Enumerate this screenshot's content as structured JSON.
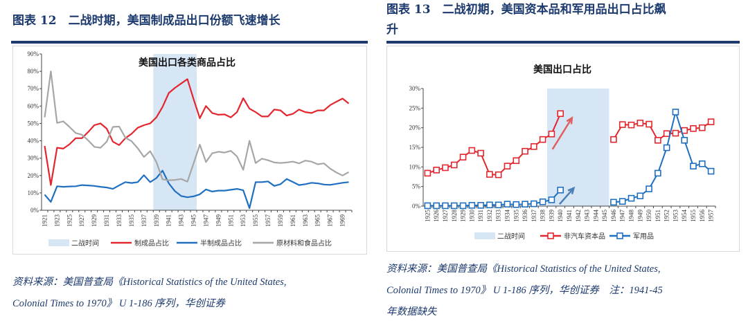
{
  "figures": [
    {
      "title": "图表 12　二战时期，美国制成品出口份额飞速增长",
      "source_line1": "资料来源：美国普查局《Historical Statistics of the United States,",
      "source_line2": "Colonial Times to 1970》 U 1-186 序列，华创证券"
    },
    {
      "title_line1": "图表 13　二战初期，美国资本品和军用品出口占比飙",
      "title_line2": "升",
      "source_line1": "资料来源：美国普查局《Historical Statistics of the United States,",
      "source_line2": "Colonial Times to 1970》 U 1-186 序列，华创证券　注：1941-45",
      "source_line3": "年数据缺失"
    }
  ],
  "chart_data": [
    {
      "type": "line",
      "title": "美国出口各类商品占比",
      "x": [
        1921,
        1922,
        1923,
        1924,
        1925,
        1926,
        1927,
        1928,
        1929,
        1930,
        1931,
        1932,
        1933,
        1934,
        1935,
        1936,
        1937,
        1938,
        1939,
        1940,
        1941,
        1942,
        1943,
        1944,
        1945,
        1946,
        1947,
        1948,
        1949,
        1950,
        1951,
        1952,
        1953,
        1954,
        1955,
        1956,
        1957,
        1958,
        1959,
        1960,
        1961,
        1962,
        1963,
        1964,
        1965,
        1966,
        1967,
        1968,
        1969,
        1970
      ],
      "xticks": [
        1921,
        1923,
        1925,
        1927,
        1929,
        1931,
        1933,
        1935,
        1937,
        1939,
        1941,
        1943,
        1945,
        1947,
        1949,
        1951,
        1953,
        1955,
        1957,
        1959,
        1961,
        1963,
        1965,
        1967,
        1969
      ],
      "ylim": [
        0,
        90
      ],
      "yticks": [
        "0%",
        "10%",
        "20%",
        "30%",
        "40%",
        "50%",
        "60%",
        "70%",
        "80%",
        "90%"
      ],
      "shaded_band": {
        "name": "二战时间",
        "from": 1938.5,
        "to": 1945.5,
        "color": "#d6e6f5"
      },
      "legend_position": "bottom",
      "series": [
        {
          "name": "制成品占比",
          "color": "#e3262e",
          "values": [
            37,
            14.5,
            36,
            35.5,
            38,
            41.5,
            41.5,
            45,
            49,
            50,
            47,
            39.5,
            37.5,
            41.5,
            44,
            47.5,
            49,
            50,
            53.5,
            59.5,
            67.5,
            70.5,
            73,
            75.5,
            64,
            53,
            60,
            56,
            55,
            55.2,
            53.5,
            56.5,
            64.5,
            58.5,
            56.5,
            54,
            54,
            58,
            57.5,
            54.5,
            55.5,
            58,
            56.5,
            56,
            57.5,
            57.5,
            60.5,
            62.5,
            64.3,
            61.5
          ]
        },
        {
          "name": "半制成品占比",
          "color": "#1f6fc0",
          "values": [
            9,
            4.8,
            13.8,
            13.5,
            13.7,
            13.8,
            14.5,
            14.3,
            14,
            13.5,
            13.1,
            12.3,
            14.3,
            16.2,
            15.7,
            16.2,
            20.2,
            16.2,
            18.5,
            22.8,
            15.5,
            11,
            8.2,
            7.5,
            8,
            9.2,
            12,
            10.8,
            11.3,
            11.3,
            11.8,
            12.3,
            11.5,
            1.2,
            16.2,
            16.2,
            16.6,
            14,
            15,
            18,
            16.3,
            14.5,
            15,
            15.8,
            15.5,
            14.8,
            14.6,
            15.2,
            15.8,
            16.2
          ]
        },
        {
          "name": "原材料和食品占比",
          "color": "#a6a6a6",
          "values": [
            53.5,
            80,
            50.3,
            51.2,
            48,
            44.5,
            43.5,
            40.3,
            36.5,
            36,
            39.5,
            48,
            48.2,
            41.8,
            39.8,
            35.7,
            30.7,
            34,
            27.8,
            17.8,
            17.3,
            17.5,
            18,
            16.5,
            27,
            37.8,
            27.8,
            32.8,
            33.7,
            33.2,
            34.2,
            31,
            23.3,
            40,
            27.2,
            29.7,
            28.8,
            27.5,
            27.2,
            27.5,
            28,
            27,
            28.6,
            28,
            26.5,
            27,
            24,
            21.8,
            20,
            22
          ]
        }
      ]
    },
    {
      "type": "line",
      "title": "美国出口占比",
      "x": [
        1925,
        1926,
        1927,
        1928,
        1929,
        1930,
        1931,
        1932,
        1933,
        1934,
        1935,
        1936,
        1937,
        1938,
        1939,
        1940,
        1941,
        1942,
        1943,
        1944,
        1945,
        1946,
        1947,
        1948,
        1949,
        1950,
        1951,
        1952,
        1953,
        1954,
        1955,
        1956,
        1957
      ],
      "ylim": [
        0,
        30
      ],
      "yticks": [
        "0%",
        "5%",
        "10%",
        "15%",
        "20%",
        "25%",
        "30%"
      ],
      "shaded_band": {
        "name": "二战时间",
        "from": 1938.5,
        "to": 1945.5,
        "color": "#d6e6f5"
      },
      "legend_position": "bottom",
      "marker": "square-open",
      "series": [
        {
          "name": "非汽车资本品",
          "color": "#e3262e",
          "values": [
            8.4,
            9.2,
            9.8,
            10.5,
            12.5,
            14.2,
            13.5,
            8.1,
            8.0,
            10.2,
            11.6,
            14,
            15.2,
            17,
            18.4,
            23.6,
            null,
            null,
            null,
            null,
            null,
            17,
            20.8,
            20.7,
            21.2,
            20.9,
            16.8,
            18.5,
            18.6,
            19.3,
            19.8,
            20,
            21.5
          ]
        },
        {
          "name": "军用品",
          "color": "#1f6fc0",
          "values": [
            0.1,
            0.1,
            0.1,
            0.1,
            0.1,
            0.2,
            0.2,
            0.3,
            0.3,
            0.5,
            0.4,
            0.5,
            0.6,
            1.1,
            1.6,
            4.1,
            null,
            null,
            null,
            null,
            null,
            1.0,
            1.2,
            2.0,
            2.6,
            4.4,
            8.4,
            14.9,
            24.0,
            16.8,
            10.2,
            10.8,
            8.9
          ]
        }
      ],
      "annotations": [
        {
          "type": "arrow",
          "color": "#e06060",
          "from": [
            1939.1,
            14.5
          ],
          "to": [
            1941.3,
            22.5
          ]
        },
        {
          "type": "arrow",
          "color": "#4a7fb5",
          "from": [
            1939.9,
            0.5
          ],
          "to": [
            1941.5,
            4.6
          ]
        }
      ]
    }
  ]
}
